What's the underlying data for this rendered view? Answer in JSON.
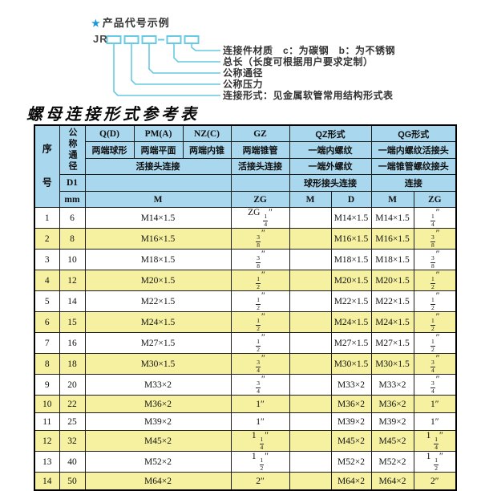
{
  "colors": {
    "header_blue": "#a8d7ee",
    "stripe_yellow": "#f6f1a1",
    "diagram_cyan": "#67c9e3",
    "star_blue": "#1899d6"
  },
  "diagram": {
    "star_icon": "★",
    "heading": "产品代号示例",
    "code_prefix": "JR",
    "code_separator": "-",
    "labels": [
      "连接件材质　c：为碳钢　b：为不锈钢",
      "总长（长度可根据用户要求定制）",
      "公称通径",
      "公称压力",
      "连接形式：见金属软管常用结构形式表"
    ]
  },
  "table_title": "螺母连接形式参考表",
  "table": {
    "header": {
      "seq": "序号",
      "dn": "公称通径",
      "d1": "D1",
      "mm": "mm",
      "q1": "Q(D)",
      "pm1": "PM(A)",
      "nz1": "NZ(C)",
      "gz1": "GZ",
      "qz1": "QZ形式",
      "qg1": "QG形式",
      "q2": "两端球形",
      "pm2": "两端平面",
      "nz2": "两端内锥",
      "gz2": "两端锥管",
      "qz2": "一端内螺纹",
      "qg2": "一端内螺纹活接头",
      "q3": "活接头连接",
      "gz3": "活接头连接",
      "qz3": "一端外螺纹",
      "qg3": "一端锥管螺纹接头",
      "qz4": "球形接头连接",
      "qg4": "连接",
      "m5": "M",
      "zg5": "ZG",
      "qz_m5": "M",
      "qz_d5": "D",
      "qg_m5": "M",
      "qg_zg5": "ZG"
    },
    "rows": [
      {
        "seq": "1",
        "dn": "6",
        "m": "M14×1.5",
        "gz": "ZG 1/4″",
        "qz_m": "",
        "qz_d": "M14×1.5",
        "qg_m": "M14×1.5",
        "qg_zg": "1/4″"
      },
      {
        "seq": "2",
        "dn": "8",
        "m": "M16×1.5",
        "gz": "3/8″",
        "qz_m": "",
        "qz_d": "M16×1.5",
        "qg_m": "M16×1.5",
        "qg_zg": "3/8″"
      },
      {
        "seq": "3",
        "dn": "10",
        "m": "M18×1.5",
        "gz": "3/8″",
        "qz_m": "",
        "qz_d": "M18×1.5",
        "qg_m": "M18×1.5",
        "qg_zg": "3/8″"
      },
      {
        "seq": "4",
        "dn": "12",
        "m": "M20×1.5",
        "gz": "1/2″",
        "qz_m": "",
        "qz_d": "M20×1.5",
        "qg_m": "M20×1.5",
        "qg_zg": "1/2″"
      },
      {
        "seq": "5",
        "dn": "14",
        "m": "M22×1.5",
        "gz": "1/2″",
        "qz_m": "",
        "qz_d": "M22×1.5",
        "qg_m": "M22×1.5",
        "qg_zg": "1/2″"
      },
      {
        "seq": "6",
        "dn": "15",
        "m": "M24×1.5",
        "gz": "1/2″",
        "qz_m": "",
        "qz_d": "M24×1.5",
        "qg_m": "M24×1.5",
        "qg_zg": "1/2″"
      },
      {
        "seq": "7",
        "dn": "16",
        "m": "M27×1.5",
        "gz": "1/2″",
        "qz_m": "",
        "qz_d": "M27×1.5",
        "qg_m": "M27×1.5",
        "qg_zg": "1/2″"
      },
      {
        "seq": "8",
        "dn": "18",
        "m": "M30×1.5",
        "gz": "3/4″",
        "qz_m": "",
        "qz_d": "M30×1.5",
        "qg_m": "M30×1.5",
        "qg_zg": "3/4″"
      },
      {
        "seq": "9",
        "dn": "20",
        "m": "M33×2",
        "gz": "3/4″",
        "qz_m": "",
        "qz_d": "M33×2",
        "qg_m": "M33×2",
        "qg_zg": "3/4″"
      },
      {
        "seq": "10",
        "dn": "22",
        "m": "M36×2",
        "gz": "1″",
        "qz_m": "",
        "qz_d": "M36×2",
        "qg_m": "M36×2",
        "qg_zg": "1″"
      },
      {
        "seq": "11",
        "dn": "25",
        "m": "M39×2",
        "gz": "1″",
        "qz_m": "",
        "qz_d": "M39×2",
        "qg_m": "M39×2",
        "qg_zg": "1″"
      },
      {
        "seq": "12",
        "dn": "32",
        "m": "M45×2",
        "gz": "1 1/4″",
        "qz_m": "",
        "qz_d": "M45×2",
        "qg_m": "M45×2",
        "qg_zg": "1 1/4″"
      },
      {
        "seq": "13",
        "dn": "40",
        "m": "M52×2",
        "gz": "1 1/2″",
        "qz_m": "",
        "qz_d": "M52×2",
        "qg_m": "M52×2",
        "qg_zg": "1 1/2″"
      },
      {
        "seq": "14",
        "dn": "50",
        "m": "M64×2",
        "gz": "2″",
        "qz_m": "",
        "qz_d": "M64×2",
        "qg_m": "M64×2",
        "qg_zg": "2″"
      }
    ]
  }
}
